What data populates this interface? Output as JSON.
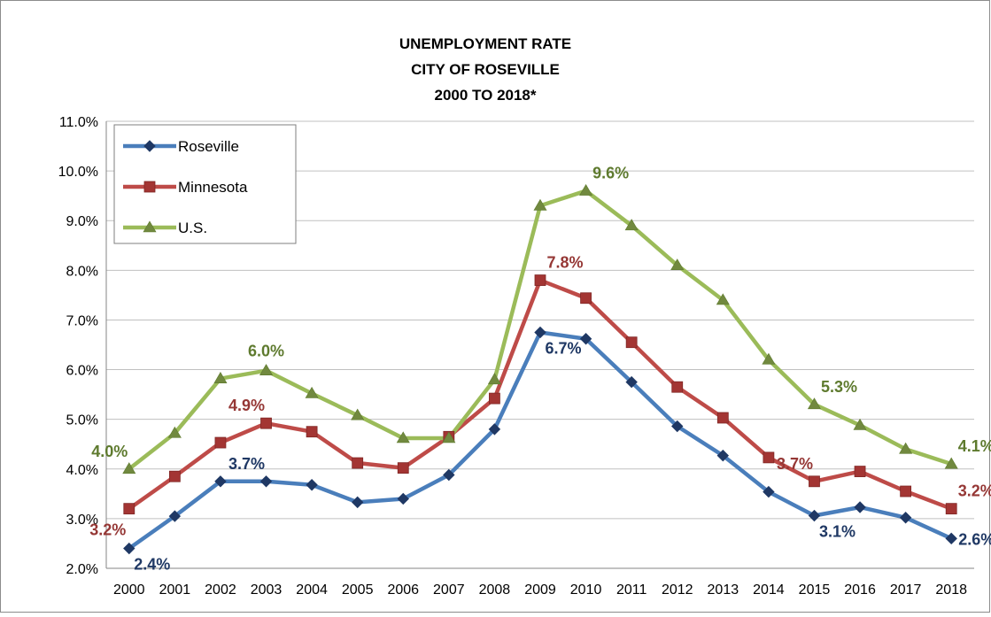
{
  "chart_data": {
    "type": "line",
    "title_lines": [
      "UNEMPLOYMENT  RATE",
      "CITY OF ROSEVILLE",
      "2000 TO 2018*"
    ],
    "xlabel": "",
    "ylabel": "",
    "categories": [
      "2000",
      "2001",
      "2002",
      "2003",
      "2004",
      "2005",
      "2006",
      "2007",
      "2008",
      "2009",
      "2010",
      "2011",
      "2012",
      "2013",
      "2014",
      "2015",
      "2016",
      "2017",
      "2018"
    ],
    "ylim": [
      2.0,
      11.0
    ],
    "yticks": [
      "2.0%",
      "3.0%",
      "4.0%",
      "5.0%",
      "6.0%",
      "7.0%",
      "8.0%",
      "9.0%",
      "10.0%",
      "11.0%"
    ],
    "grid": true,
    "legend_position": "top-left",
    "series": [
      {
        "name": "Roseville",
        "color": "#4a7ebb",
        "marker": "diamond",
        "marker_color": "#1f3864",
        "label_color": "#1f3864",
        "values": [
          2.4,
          3.05,
          3.75,
          3.75,
          3.68,
          3.33,
          3.4,
          3.88,
          4.8,
          6.75,
          6.62,
          5.75,
          4.86,
          4.27,
          3.54,
          3.06,
          3.23,
          3.02,
          2.6
        ],
        "labels": [
          {
            "index": 0,
            "text": "2.4%",
            "pos": "below-right"
          },
          {
            "index": 3,
            "text": "3.7%",
            "pos": "above-left"
          },
          {
            "index": 9,
            "text": "6.7%",
            "pos": "below-right"
          },
          {
            "index": 15,
            "text": "3.1%",
            "pos": "below-right"
          },
          {
            "index": 18,
            "text": "2.6%",
            "pos": "right"
          }
        ]
      },
      {
        "name": "Minnesota",
        "color": "#be4b48",
        "marker": "square",
        "marker_color": "#a33533",
        "label_color": "#953735",
        "values": [
          3.2,
          3.85,
          4.53,
          4.92,
          4.75,
          4.12,
          4.02,
          4.65,
          5.42,
          7.8,
          7.44,
          6.55,
          5.65,
          5.03,
          4.23,
          3.75,
          3.95,
          3.55,
          3.2
        ],
        "labels": [
          {
            "index": 0,
            "text": "3.2%",
            "pos": "below-left"
          },
          {
            "index": 3,
            "text": "4.9%",
            "pos": "above-left"
          },
          {
            "index": 9,
            "text": "7.8%",
            "pos": "above-right"
          },
          {
            "index": 15,
            "text": "3.7%",
            "pos": "above-left"
          },
          {
            "index": 18,
            "text": "3.2%",
            "pos": "above-right"
          }
        ]
      },
      {
        "name": "U.S.",
        "color": "#9bbb59",
        "marker": "triangle",
        "marker_color": "#71893f",
        "label_color": "#5e7a2e",
        "values": [
          4.0,
          4.72,
          5.82,
          5.98,
          5.52,
          5.08,
          4.62,
          4.62,
          5.8,
          9.3,
          9.6,
          8.9,
          8.1,
          7.4,
          6.2,
          5.3,
          4.88,
          4.4,
          4.1
        ],
        "labels": [
          {
            "index": 0,
            "text": "4.0%",
            "pos": "above-left"
          },
          {
            "index": 3,
            "text": "6.0%",
            "pos": "above"
          },
          {
            "index": 10,
            "text": "9.6%",
            "pos": "above-right"
          },
          {
            "index": 15,
            "text": "5.3%",
            "pos": "above-right"
          },
          {
            "index": 18,
            "text": "4.1%",
            "pos": "above-right"
          }
        ]
      }
    ]
  }
}
